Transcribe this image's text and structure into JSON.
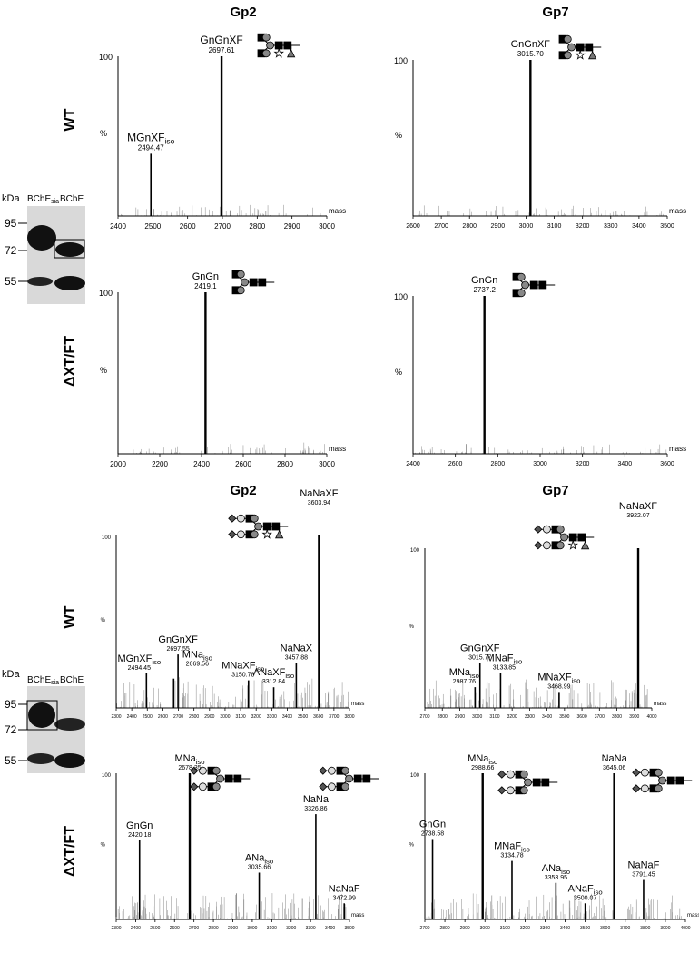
{
  "titles": {
    "gp2_top": "Gp2",
    "gp7_top": "Gp7",
    "gp2_bottom": "Gp2",
    "gp7_bottom": "Gp7"
  },
  "row_labels": {
    "wt_top": "WT",
    "dxt_top": "ΔXT/FT",
    "wt_bottom": "WT",
    "dxt_bottom": "ΔXT/FT"
  },
  "gels": [
    {
      "kda": "kDa",
      "lane1_main": "BChE",
      "lane1_sub": "sia",
      "lane2": "BChE",
      "markers": [
        "95",
        "72",
        "55"
      ]
    },
    {
      "kda": "kDa",
      "lane1_main": "BChE",
      "lane1_sub": "sia",
      "lane2": "BChE",
      "markers": [
        "95",
        "72",
        "55"
      ]
    }
  ],
  "chart_data": [
    {
      "type": "bar",
      "id": "p1",
      "xlabel": "mass",
      "ylabel": "%",
      "y_tick_top": "100",
      "xlim": [
        2400,
        3000
      ],
      "xticks": [
        2400,
        2500,
        2600,
        2700,
        2800,
        2900,
        3000
      ],
      "peaks": [
        {
          "x": 2494.47,
          "y": 39,
          "name": "MGnXF",
          "sub": "iso",
          "mass": "2494.47"
        },
        {
          "x": 2697.61,
          "y": 100,
          "name": "GnGnXF",
          "sub": "",
          "mass": "2697.61"
        }
      ]
    },
    {
      "type": "bar",
      "id": "p2",
      "xlabel": "mass",
      "ylabel": "%",
      "y_tick_top": "100",
      "xlim": [
        2600,
        3500
      ],
      "xticks": [
        2600,
        2700,
        2800,
        2900,
        3000,
        3100,
        3200,
        3300,
        3400,
        3500
      ],
      "peaks": [
        {
          "x": 3015.7,
          "y": 100,
          "name": "GnGnXF",
          "sub": "",
          "mass": "3015.70"
        }
      ]
    },
    {
      "type": "bar",
      "id": "p3",
      "xlabel": "mass",
      "ylabel": "%",
      "y_tick_top": "100",
      "xlim": [
        2000,
        3000
      ],
      "xticks": [
        2000,
        2200,
        2400,
        2600,
        2800,
        3000
      ],
      "peaks": [
        {
          "x": 2419.1,
          "y": 100,
          "name": "GnGn",
          "sub": "",
          "mass": "2419.1"
        }
      ]
    },
    {
      "type": "bar",
      "id": "p4",
      "xlabel": "mass",
      "ylabel": "%",
      "y_tick_top": "100",
      "xlim": [
        2400,
        3600
      ],
      "xticks": [
        2400,
        2600,
        2800,
        3000,
        3200,
        3400,
        3600
      ],
      "peaks": [
        {
          "x": 2737.2,
          "y": 100,
          "name": "GnGn",
          "sub": "",
          "mass": "2737.2"
        }
      ]
    },
    {
      "type": "bar",
      "id": "p5",
      "xlabel": "mass",
      "ylabel": "%",
      "y_tick_top": "100",
      "xlim": [
        2300,
        3800
      ],
      "xticks": [
        2300,
        2400,
        2500,
        2600,
        2700,
        2800,
        2900,
        3000,
        3100,
        3200,
        3300,
        3400,
        3500,
        3600,
        3700,
        3800
      ],
      "peaks": [
        {
          "x": 2494.45,
          "y": 20,
          "name": "MGnXF",
          "sub": "iso",
          "mass": "2494.45"
        },
        {
          "x": 2697.55,
          "y": 31,
          "name": "GnGnXF",
          "sub": "",
          "mass": "2697.55"
        },
        {
          "x": 2669.56,
          "y": 17,
          "name": "MNa",
          "sub": "iso",
          "mass": "2669.56"
        },
        {
          "x": 3150.78,
          "y": 16,
          "name": "MNaXF",
          "sub": "iso",
          "mass": "3150.78"
        },
        {
          "x": 3312.84,
          "y": 12,
          "name": "ANaXF",
          "sub": "iso",
          "mass": "3312.84"
        },
        {
          "x": 3457.88,
          "y": 26,
          "name": "NaNaX",
          "sub": "",
          "mass": "3457.88"
        },
        {
          "x": 3603.94,
          "y": 100,
          "name": "NaNaXF",
          "sub": "",
          "mass": "3603.94"
        }
      ]
    },
    {
      "type": "bar",
      "id": "p6",
      "xlabel": "mass",
      "ylabel": "%",
      "y_tick_top": "100",
      "xlim": [
        2700,
        4000
      ],
      "xticks": [
        2700,
        2800,
        2900,
        3000,
        3100,
        3200,
        3300,
        3400,
        3500,
        3600,
        3700,
        3800,
        3900,
        4000
      ],
      "peaks": [
        {
          "x": 2987.76,
          "y": 13,
          "name": "MNa",
          "sub": "iso",
          "mass": "2987.76"
        },
        {
          "x": 3015.77,
          "y": 28,
          "name": "GnGnXF",
          "sub": "",
          "mass": "3015.77"
        },
        {
          "x": 3133.85,
          "y": 22,
          "name": "MNaF",
          "sub": "iso",
          "mass": "3133.85"
        },
        {
          "x": 3468.99,
          "y": 10,
          "name": "MNaXF",
          "sub": "iso",
          "mass": "3468.99"
        },
        {
          "x": 3922.07,
          "y": 100,
          "name": "NaNaXF",
          "sub": "",
          "mass": "3922.07"
        }
      ]
    },
    {
      "type": "bar",
      "id": "p7",
      "xlabel": "mass",
      "ylabel": "%",
      "y_tick_top": "100",
      "xlim": [
        2300,
        3500
      ],
      "xticks": [
        2300,
        2400,
        2500,
        2600,
        2700,
        2800,
        2900,
        3000,
        3100,
        3200,
        3300,
        3400,
        3500
      ],
      "peaks": [
        {
          "x": 2420.18,
          "y": 54,
          "name": "GnGn",
          "sub": "",
          "mass": "2420.18"
        },
        {
          "x": 2678.35,
          "y": 100,
          "name": "MNa",
          "sub": "iso",
          "mass": "2678.35"
        },
        {
          "x": 3035.66,
          "y": 32,
          "name": "ANa",
          "sub": "iso",
          "mass": "3035.66"
        },
        {
          "x": 3326.86,
          "y": 72,
          "name": "NaNa",
          "sub": "",
          "mass": "3326.86"
        },
        {
          "x": 3472.99,
          "y": 11,
          "name": "NaNaF",
          "sub": "",
          "mass": "3472.99"
        }
      ]
    },
    {
      "type": "bar",
      "id": "p8",
      "xlabel": "mass",
      "ylabel": "%",
      "y_tick_top": "100",
      "xlim": [
        2700,
        4000
      ],
      "xticks": [
        2700,
        2800,
        2900,
        3000,
        3100,
        3200,
        3300,
        3400,
        3500,
        3600,
        3700,
        3800,
        3900,
        4000
      ],
      "peaks": [
        {
          "x": 2738.58,
          "y": 55,
          "name": "GnGn",
          "sub": "",
          "mass": "2738.58"
        },
        {
          "x": 2988.66,
          "y": 100,
          "name": "MNa",
          "sub": "iso",
          "mass": "2988.66"
        },
        {
          "x": 3134.78,
          "y": 40,
          "name": "MNaF",
          "sub": "iso",
          "mass": "3134.78"
        },
        {
          "x": 3353.95,
          "y": 25,
          "name": "ANa",
          "sub": "iso",
          "mass": "3353.95"
        },
        {
          "x": 3500.07,
          "y": 11,
          "name": "ANaF",
          "sub": "iso",
          "mass": "3500.07"
        },
        {
          "x": 3645.06,
          "y": 100,
          "name": "NaNa",
          "sub": "",
          "mass": "3645.06"
        },
        {
          "x": 3791.45,
          "y": 27,
          "name": "NaNaF",
          "sub": "",
          "mass": "3791.45"
        }
      ]
    }
  ]
}
